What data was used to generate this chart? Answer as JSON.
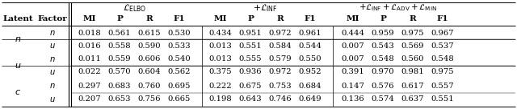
{
  "col_groups": [
    {
      "label": "$\\mathcal{L}_{\\mathrm{ELBO}}$"
    },
    {
      "label": "$+\\mathcal{L}_{\\mathrm{INF}}$"
    },
    {
      "label": "$+\\mathcal{L}_{\\mathrm{INF}}+\\mathcal{L}_{\\mathrm{ADV}}+\\mathcal{L}_{\\mathrm{MIN}}$"
    }
  ],
  "row_groups": [
    {
      "latent": "n",
      "rows": [
        {
          "factor": "n",
          "values": [
            0.018,
            0.561,
            0.615,
            0.53,
            0.434,
            0.951,
            0.972,
            0.961,
            0.444,
            0.959,
            0.975,
            0.967
          ]
        },
        {
          "factor": "u",
          "values": [
            0.016,
            0.558,
            0.59,
            0.533,
            0.013,
            0.551,
            0.584,
            0.544,
            0.007,
            0.543,
            0.569,
            0.537
          ]
        }
      ]
    },
    {
      "latent": "u",
      "rows": [
        {
          "factor": "n",
          "values": [
            0.011,
            0.559,
            0.606,
            0.54,
            0.013,
            0.555,
            0.579,
            0.55,
            0.007,
            0.548,
            0.56,
            0.548
          ]
        },
        {
          "factor": "u",
          "values": [
            0.022,
            0.57,
            0.604,
            0.562,
            0.375,
            0.936,
            0.972,
            0.952,
            0.391,
            0.97,
            0.981,
            0.975
          ]
        }
      ]
    },
    {
      "latent": "c",
      "rows": [
        {
          "factor": "n",
          "values": [
            0.297,
            0.683,
            0.76,
            0.695,
            0.222,
            0.675,
            0.753,
            0.684,
            0.147,
            0.576,
            0.617,
            0.557
          ]
        },
        {
          "factor": "u",
          "values": [
            0.207,
            0.653,
            0.756,
            0.665,
            0.198,
            0.643,
            0.746,
            0.649,
            0.136,
            0.574,
            0.637,
            0.551
          ]
        }
      ]
    }
  ],
  "bg_color": "#ffffff",
  "line_color": "#000000"
}
